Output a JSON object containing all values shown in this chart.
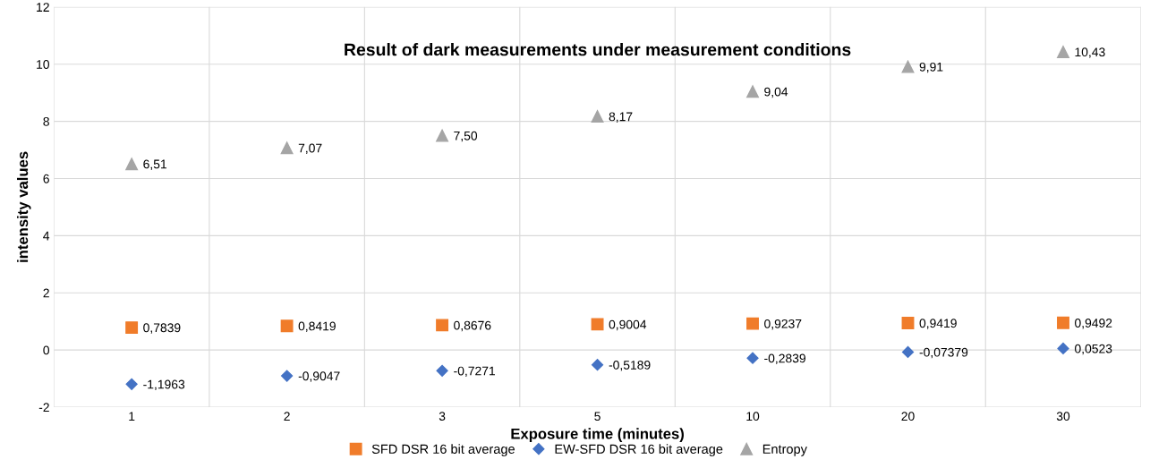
{
  "chart_data": {
    "type": "scatter",
    "title": "Result of dark measurements under measurement conditions",
    "xlabel": "Exposure time (minutes)",
    "ylabel": "intensity values",
    "categories": [
      "1",
      "2",
      "3",
      "5",
      "10",
      "20",
      "30"
    ],
    "series": [
      {
        "name": "SFD DSR 16 bit average",
        "color": "#f07c2a",
        "marker": "square",
        "values": [
          0.7839,
          0.8419,
          0.8676,
          0.9004,
          0.9237,
          0.9419,
          0.9492
        ],
        "value_labels": [
          "0,7839",
          "0,8419",
          "0,8676",
          "0,9004",
          "0,9237",
          "0,9419",
          "0,9492"
        ]
      },
      {
        "name": "EW-SFD DSR 16 bit average",
        "color": "#4472c4",
        "marker": "diamond",
        "values": [
          -1.1963,
          -0.9047,
          -0.7271,
          -0.5189,
          -0.2839,
          -0.07379,
          0.0523
        ],
        "value_labels": [
          "-1,1963",
          "-0,9047",
          "-0,7271",
          "-0,5189",
          "-0,2839",
          "-0,07379",
          "0,0523"
        ]
      },
      {
        "name": "Entropy",
        "color": "#a5a5a5",
        "marker": "triangle",
        "values": [
          6.51,
          7.07,
          7.5,
          8.17,
          9.04,
          9.91,
          10.43
        ],
        "value_labels": [
          "6,51",
          "7,07",
          "7,50",
          "8,17",
          "9,04",
          "9,91",
          "10,43"
        ]
      }
    ],
    "ylim": [
      -2,
      12
    ],
    "yticks": [
      -2,
      0,
      2,
      4,
      6,
      8,
      10,
      12
    ],
    "grid": true,
    "legend": "bottom"
  }
}
